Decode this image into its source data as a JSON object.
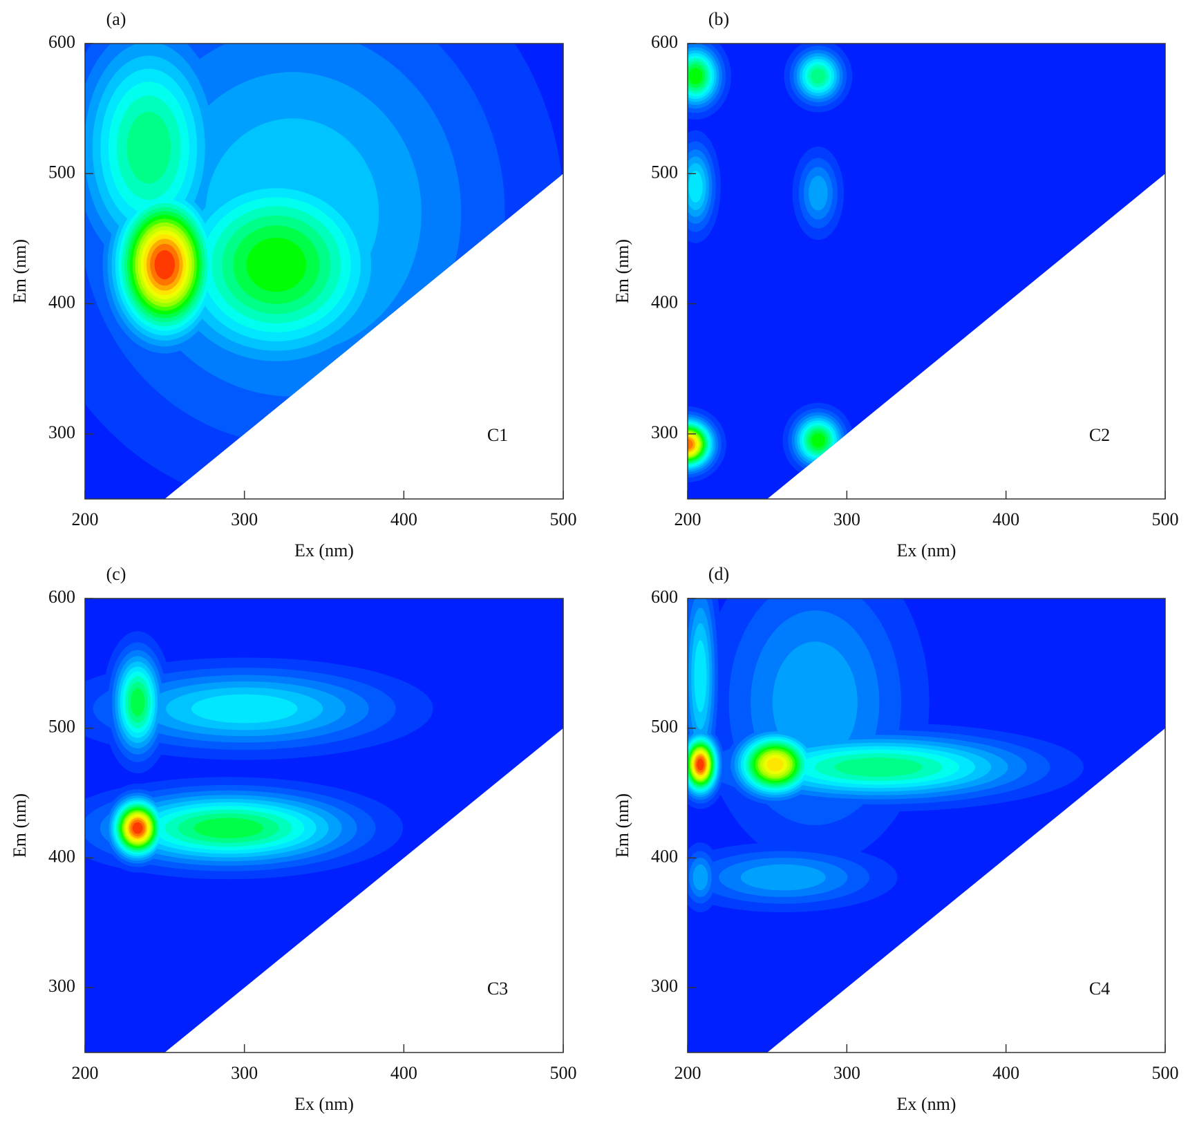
{
  "chart_data": [
    {
      "type": "contour",
      "panel_label": "(a)",
      "annotation": "C1",
      "xlabel": "Ex (nm)",
      "ylabel": "Em (nm)",
      "xlim": [
        200,
        500
      ],
      "ylim": [
        250,
        600
      ],
      "xticks": [
        200,
        300,
        400,
        500
      ],
      "yticks": [
        300,
        400,
        500,
        600
      ],
      "colormap": [
        "#0020ff",
        "#0060ff",
        "#00b0ff",
        "#00ffff",
        "#00ff90",
        "#00ff00",
        "#b0ff00",
        "#ffff00",
        "#ff8000",
        "#ff0000"
      ],
      "peaks": [
        {
          "ex": 250,
          "em": 430,
          "ex_width": 20,
          "em_width": 35,
          "intensity": 1.0
        },
        {
          "ex": 320,
          "em": 430,
          "ex_width": 45,
          "em_width": 50,
          "intensity": 0.6
        },
        {
          "ex": 240,
          "em": 520,
          "ex_width": 30,
          "em_width": 60,
          "intensity": 0.5
        },
        {
          "ex": 330,
          "em": 470,
          "ex_width": 90,
          "em_width": 120,
          "intensity": 0.3
        }
      ]
    },
    {
      "type": "contour",
      "panel_label": "(b)",
      "annotation": "C2",
      "xlabel": "Ex (nm)",
      "ylabel": "Em (nm)",
      "xlim": [
        200,
        500
      ],
      "ylim": [
        250,
        600
      ],
      "xticks": [
        200,
        300,
        400,
        500
      ],
      "yticks": [
        300,
        400,
        500,
        600
      ],
      "colormap": [
        "#0020ff",
        "#0060ff",
        "#00b0ff",
        "#00ffff",
        "#00ff90",
        "#00ff00",
        "#b0ff00",
        "#ffff00",
        "#ff8000",
        "#ff0000"
      ],
      "peaks": [
        {
          "ex": 200,
          "em": 292,
          "ex_width": 10,
          "em_width": 12,
          "intensity": 0.95
        },
        {
          "ex": 205,
          "em": 575,
          "ex_width": 10,
          "em_width": 15,
          "intensity": 0.6
        },
        {
          "ex": 282,
          "em": 575,
          "ex_width": 10,
          "em_width": 13,
          "intensity": 0.5
        },
        {
          "ex": 282,
          "em": 295,
          "ex_width": 10,
          "em_width": 13,
          "intensity": 0.6
        },
        {
          "ex": 205,
          "em": 490,
          "ex_width": 8,
          "em_width": 22,
          "intensity": 0.35
        },
        {
          "ex": 282,
          "em": 485,
          "ex_width": 9,
          "em_width": 20,
          "intensity": 0.25
        }
      ]
    },
    {
      "type": "contour",
      "panel_label": "(c)",
      "annotation": "C3",
      "xlabel": "Ex (nm)",
      "ylabel": "Em (nm)",
      "xlim": [
        200,
        500
      ],
      "ylim": [
        250,
        600
      ],
      "xticks": [
        200,
        300,
        400,
        500
      ],
      "yticks": [
        300,
        400,
        500,
        600
      ],
      "colormap": [
        "#0020ff",
        "#0060ff",
        "#00b0ff",
        "#00ffff",
        "#00ff90",
        "#00ff00",
        "#b0ff00",
        "#ffff00",
        "#ff8000",
        "#ff0000"
      ],
      "peaks": [
        {
          "ex": 233,
          "em": 423,
          "ex_width": 10,
          "em_width": 14,
          "intensity": 1.0
        },
        {
          "ex": 290,
          "em": 423,
          "ex_width": 50,
          "em_width": 18,
          "intensity": 0.55
        },
        {
          "ex": 233,
          "em": 520,
          "ex_width": 10,
          "em_width": 25,
          "intensity": 0.55
        },
        {
          "ex": 300,
          "em": 515,
          "ex_width": 60,
          "em_width": 20,
          "intensity": 0.35
        }
      ]
    },
    {
      "type": "contour",
      "panel_label": "(d)",
      "annotation": "C4",
      "xlabel": "Ex (nm)",
      "ylabel": "Em (nm)",
      "xlim": [
        200,
        500
      ],
      "ylim": [
        250,
        600
      ],
      "xticks": [
        200,
        300,
        400,
        500
      ],
      "yticks": [
        300,
        400,
        500,
        600
      ],
      "colormap": [
        "#0020ff",
        "#0060ff",
        "#00b0ff",
        "#00ffff",
        "#00ff90",
        "#00ff00",
        "#b0ff00",
        "#ffff00",
        "#ff8000",
        "#ff0000"
      ],
      "peaks": [
        {
          "ex": 208,
          "em": 472,
          "ex_width": 7,
          "em_width": 14,
          "intensity": 1.0
        },
        {
          "ex": 255,
          "em": 472,
          "ex_width": 15,
          "em_width": 15,
          "intensity": 0.85
        },
        {
          "ex": 320,
          "em": 470,
          "ex_width": 60,
          "em_width": 16,
          "intensity": 0.5
        },
        {
          "ex": 208,
          "em": 540,
          "ex_width": 7,
          "em_width": 50,
          "intensity": 0.35
        },
        {
          "ex": 280,
          "em": 520,
          "ex_width": 40,
          "em_width": 70,
          "intensity": 0.25
        },
        {
          "ex": 260,
          "em": 385,
          "ex_width": 40,
          "em_width": 15,
          "intensity": 0.25
        },
        {
          "ex": 208,
          "em": 385,
          "ex_width": 7,
          "em_width": 15,
          "intensity": 0.25
        }
      ]
    }
  ]
}
